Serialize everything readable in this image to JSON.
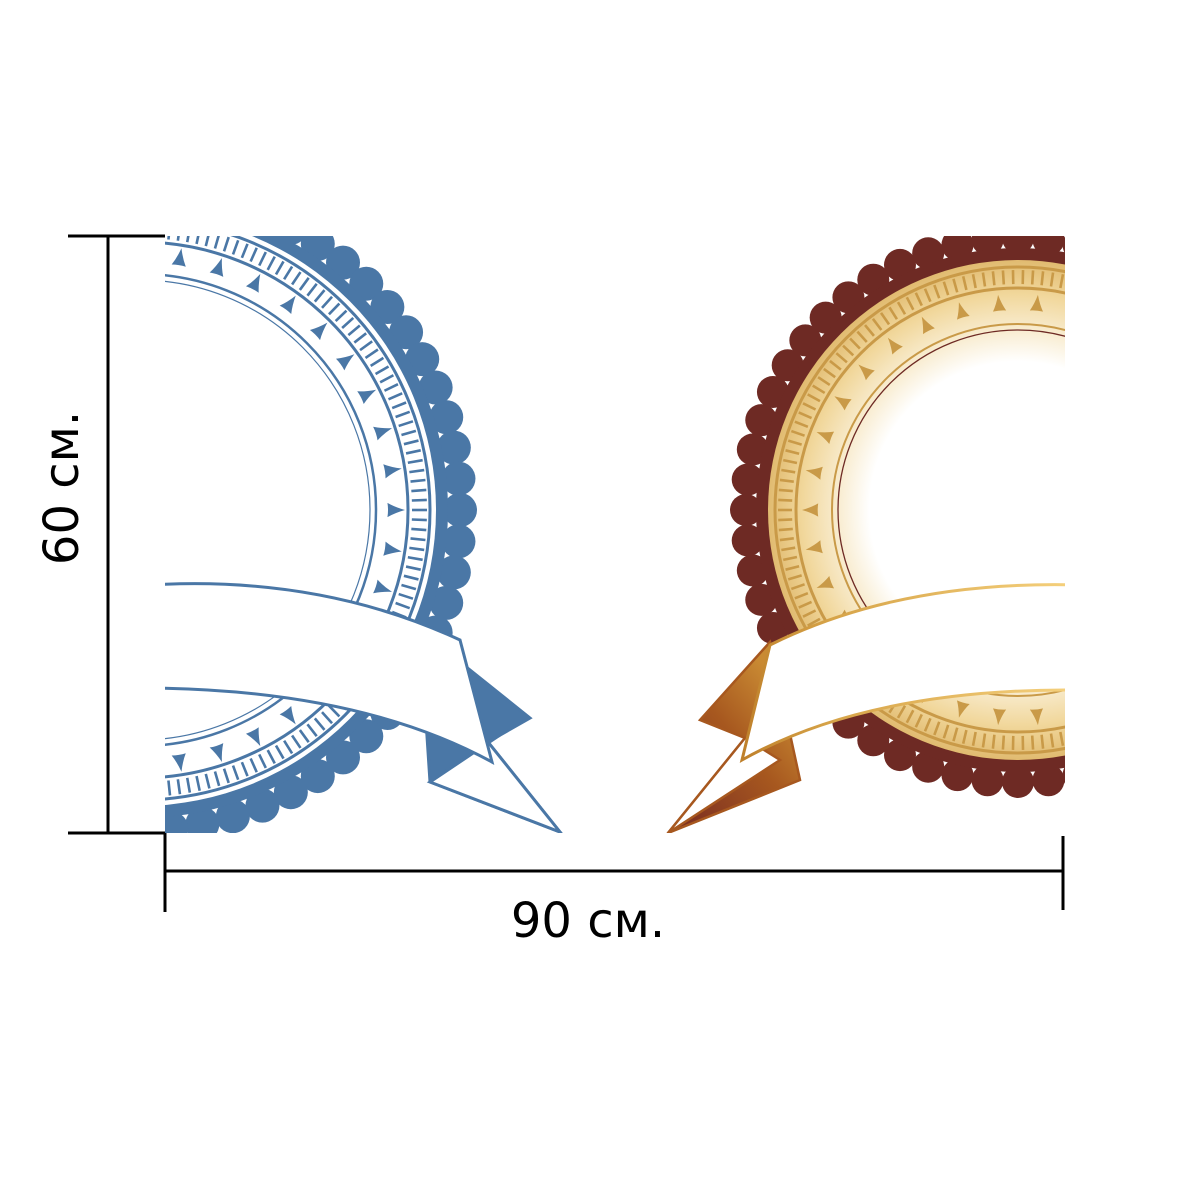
{
  "dimensions": {
    "width_label": "90 см.",
    "height_label": "60 см."
  },
  "artwork": {
    "left_emblem": {
      "icon": "blue-rosette-badge-icon",
      "color": "#4a77a6"
    },
    "right_emblem": {
      "icon": "gold-maroon-rosette-badge-icon",
      "rim_color": "#6e2a24",
      "gold_color": "#c99a48"
    }
  }
}
